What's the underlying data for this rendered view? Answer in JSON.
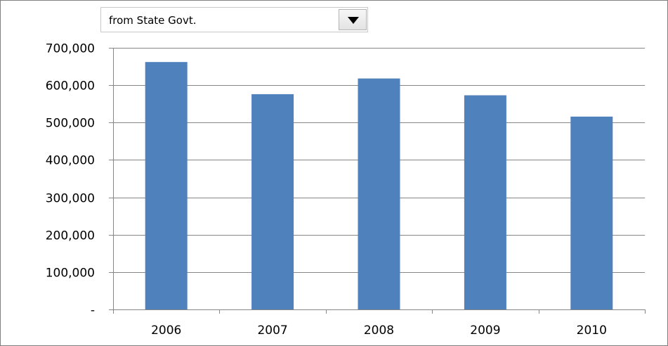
{
  "dropdown": {
    "selected": "from State Govt."
  },
  "chart_data": {
    "type": "bar",
    "categories": [
      "2006",
      "2007",
      "2008",
      "2009",
      "2010"
    ],
    "values": [
      662000,
      576000,
      618000,
      573000,
      516000
    ],
    "title": "",
    "xlabel": "",
    "ylabel": "",
    "ylim": [
      0,
      700000
    ],
    "yticks": [
      0,
      100000,
      200000,
      300000,
      400000,
      500000,
      600000,
      700000
    ],
    "ytick_labels": [
      "-",
      "100,000",
      "200,000",
      "300,000",
      "400,000",
      "500,000",
      "600,000",
      "700,000"
    ],
    "grid": true,
    "legend": "none",
    "bar_color": "#4f81bd"
  }
}
